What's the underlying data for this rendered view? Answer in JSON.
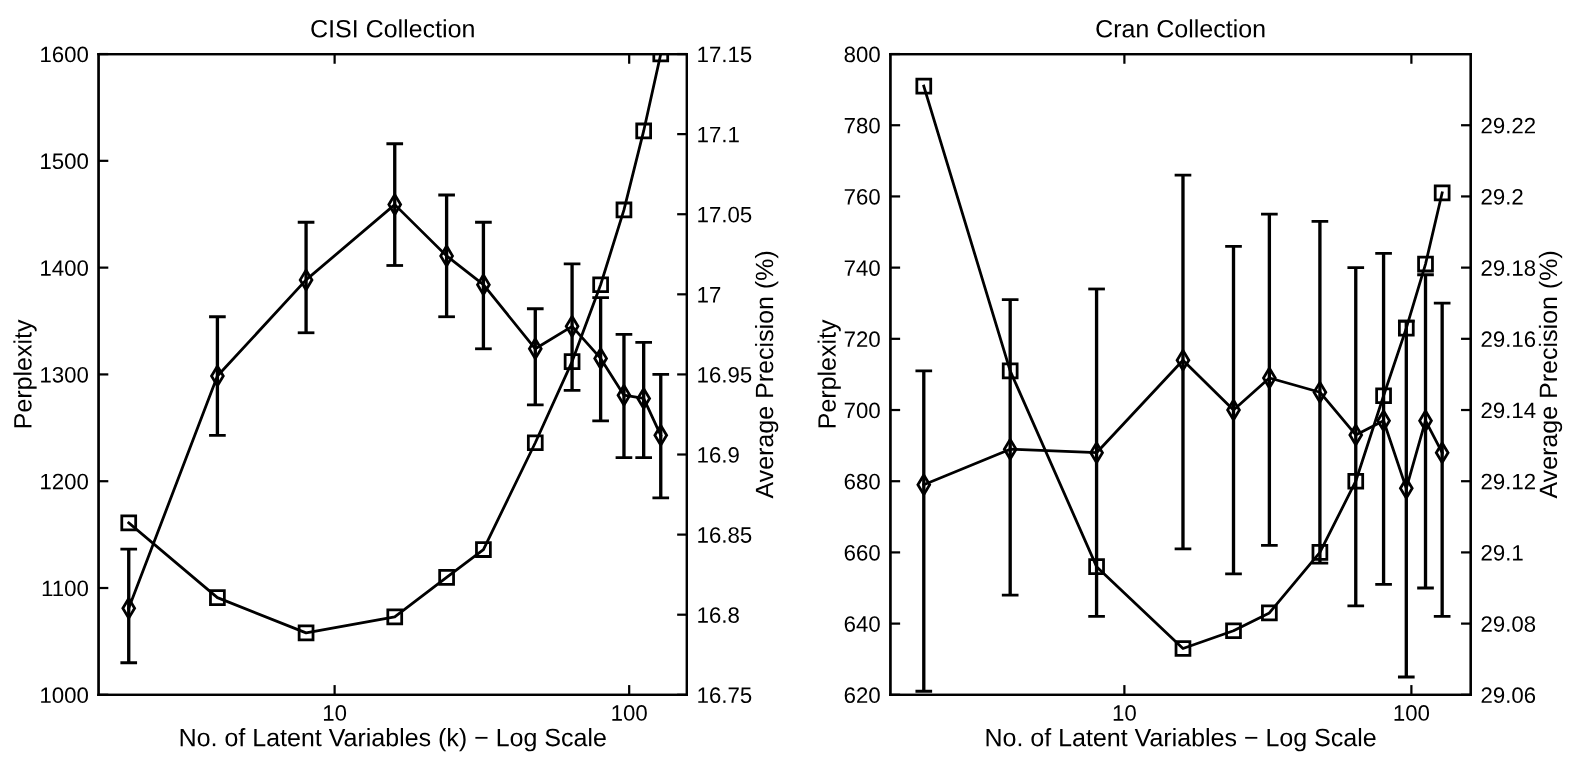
{
  "chart_data": [
    {
      "type": "line",
      "title": "CISI Collection",
      "xlabel": "No. of Latent Variables (k) − Log Scale",
      "ylabel": "Perplexity",
      "y2label": "Average Precision (%)",
      "log": "x",
      "grid": false,
      "legend": false,
      "xlim": [
        1.58,
        157
      ],
      "xticks": [
        10,
        100
      ],
      "ylim": [
        1000,
        1600
      ],
      "yticks": [
        1000,
        1100,
        1200,
        1300,
        1400,
        1500,
        1600
      ],
      "y2lim": [
        16.75,
        17.15
      ],
      "y2ticks": [
        16.75,
        16.8,
        16.85,
        16.9,
        16.95,
        17,
        17.05,
        17.1,
        17.15
      ],
      "x": [
        2,
        4,
        8,
        16,
        24,
        32,
        48,
        64,
        80,
        96,
        112,
        128
      ],
      "series": [
        {
          "color": "#000000",
          "marker": "square",
          "values": [
            1161,
            1091,
            1058,
            1073,
            1110,
            1136,
            1236,
            1312,
            1384,
            1454,
            1528,
            1600
          ]
        },
        {
          "color": "#000000",
          "marker": "diamond",
          "axis": "y2",
          "values": [
            16.804,
            16.949,
            17.009,
            17.056,
            17.024,
            17.006,
            16.966,
            16.98,
            16.96,
            16.937,
            16.935,
            16.912
          ],
          "errors": [
            [
              16.77,
              16.841
            ],
            [
              16.912,
              16.986
            ],
            [
              16.976,
              17.045
            ],
            [
              17.018,
              17.094
            ],
            [
              16.986,
              17.062
            ],
            [
              16.966,
              17.045
            ],
            [
              16.931,
              16.991
            ],
            [
              16.94,
              17.019
            ],
            [
              16.921,
              16.998
            ],
            [
              16.898,
              16.975
            ],
            [
              16.898,
              16.97
            ],
            [
              16.873,
              16.95
            ]
          ]
        }
      ]
    },
    {
      "type": "line",
      "title": "Cran Collection",
      "xlabel": "No. of Latent Variables − Log Scale",
      "ylabel": "Perplexity",
      "y2label": "Average Precision (%)",
      "log": "x",
      "grid": false,
      "legend": false,
      "xlim": [
        1.53,
        161
      ],
      "xticks": [
        10,
        100
      ],
      "ylim": [
        620,
        800
      ],
      "yticks": [
        620,
        640,
        660,
        680,
        700,
        720,
        740,
        760,
        780,
        800
      ],
      "y2lim": [
        29.06,
        29.24
      ],
      "y2ticks": [
        29.06,
        29.08,
        29.1,
        29.12,
        29.14,
        29.16,
        29.18,
        29.2,
        29.22
      ],
      "x": [
        2,
        4,
        8,
        16,
        24,
        32,
        48,
        64,
        80,
        96,
        112,
        128
      ],
      "series": [
        {
          "color": "#000000",
          "marker": "square",
          "values": [
            791,
            711,
            656,
            633,
            638,
            643,
            660,
            680,
            704,
            723,
            741,
            761
          ]
        },
        {
          "color": "#000000",
          "marker": "diamond",
          "axis": "y2",
          "values": [
            29.119,
            29.129,
            29.128,
            29.154,
            29.14,
            29.149,
            29.145,
            29.133,
            29.137,
            29.118,
            29.137,
            29.128
          ],
          "errors": [
            [
              29.061,
              29.151
            ],
            [
              29.088,
              29.171
            ],
            [
              29.082,
              29.174
            ],
            [
              29.101,
              29.206
            ],
            [
              29.094,
              29.186
            ],
            [
              29.102,
              29.195
            ],
            [
              29.097,
              29.193
            ],
            [
              29.085,
              29.18
            ],
            [
              29.091,
              29.184
            ],
            [
              29.065,
              29.165
            ],
            [
              29.09,
              29.178
            ],
            [
              29.082,
              29.17
            ]
          ]
        }
      ]
    }
  ]
}
